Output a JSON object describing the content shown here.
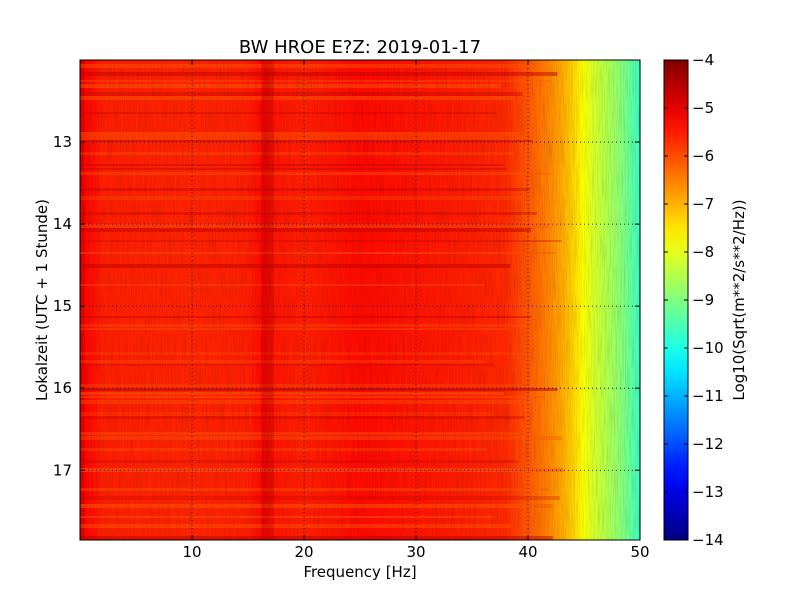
{
  "chart_data": {
    "type": "heatmap",
    "title": "BW HROE E?Z: 2019-01-17",
    "xlabel": "Frequency [Hz]",
    "ylabel": "Lokalzeit (UTC + 1 Stunde)",
    "xlim": [
      0,
      50
    ],
    "ylim": [
      17.85,
      12.0
    ],
    "x_ticks": [
      10,
      20,
      30,
      40,
      50
    ],
    "x_tick_labels": [
      "10",
      "20",
      "30",
      "40",
      "50"
    ],
    "y_ticks": [
      13,
      14,
      15,
      16,
      17
    ],
    "y_tick_labels": [
      "13",
      "14",
      "15",
      "16",
      "17"
    ],
    "grid": true,
    "colorscale": "jet",
    "colorbar": {
      "label": "Log10(Sqrt(m**2/s**2/Hz))",
      "range": [
        -14,
        -4
      ],
      "ticks": [
        -4,
        -5,
        -6,
        -7,
        -8,
        -9,
        -10,
        -11,
        -12,
        -13,
        -14
      ],
      "tick_labels": [
        "−4",
        "−5",
        "−6",
        "−7",
        "−8",
        "−9",
        "−10",
        "−11",
        "−12",
        "−13",
        "−14"
      ]
    },
    "frequency_profile": {
      "frequency_hz": [
        0,
        0.5,
        2,
        10,
        15,
        16.5,
        17,
        20,
        25,
        30,
        35,
        38,
        40,
        42,
        43,
        44,
        45,
        46,
        47,
        48,
        49,
        50
      ],
      "log10_amplitude": [
        -4.7,
        -5.3,
        -5.55,
        -5.6,
        -5.55,
        -5.3,
        -5.45,
        -5.55,
        -5.35,
        -5.45,
        -5.55,
        -5.65,
        -6.1,
        -6.6,
        -6.9,
        -7.3,
        -7.8,
        -8.2,
        -8.5,
        -8.8,
        -9.2,
        -9.7
      ]
    }
  }
}
